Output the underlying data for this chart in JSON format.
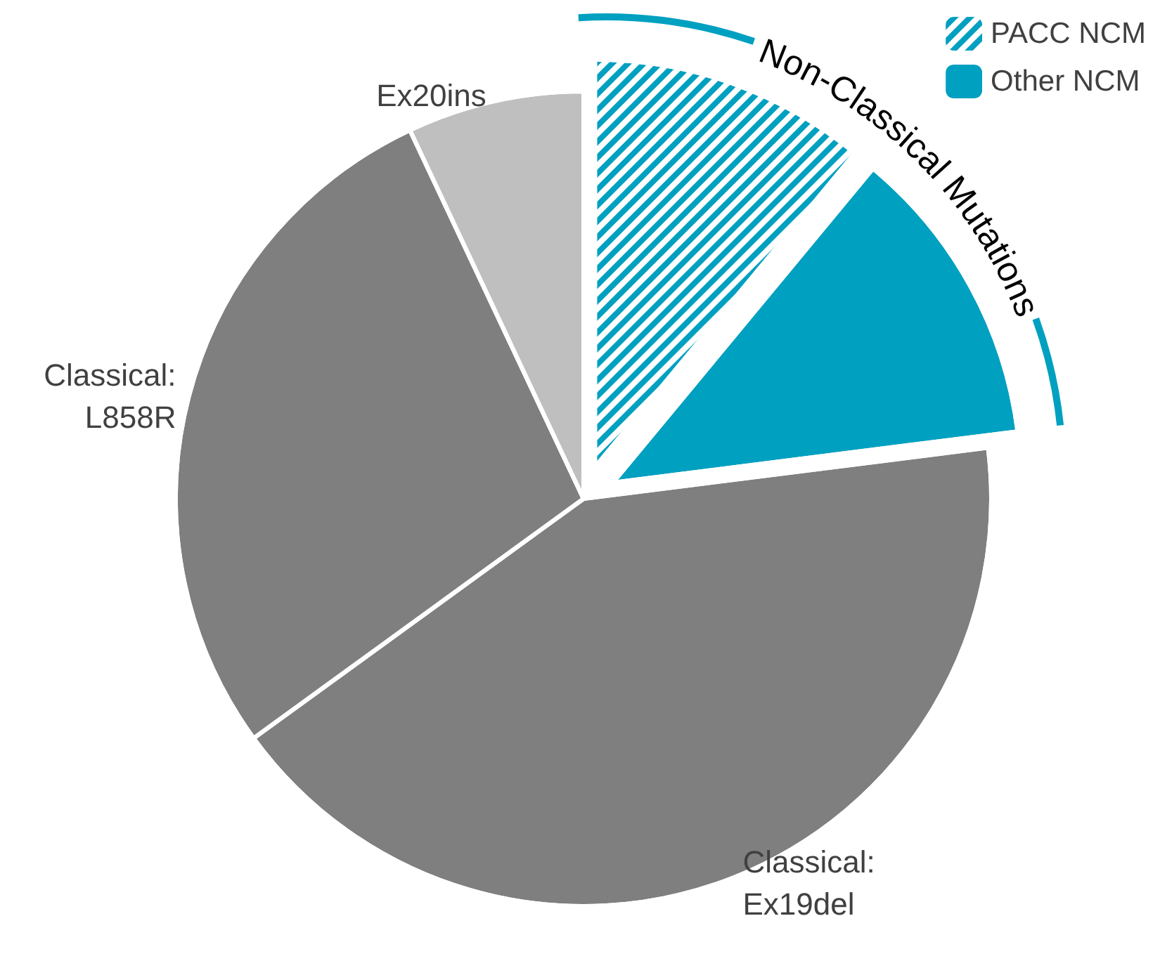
{
  "chart_data": {
    "type": "pie",
    "categories": [
      "PACC NCM",
      "Other NCM",
      "Classical:\nEx19del",
      "Classical:\nL858R",
      "Ex20ins"
    ],
    "values": [
      11,
      12,
      42,
      28,
      7
    ],
    "colors": [
      "#00a0c0",
      "#00a0c0",
      "#7f7f7f",
      "#7f7f7f",
      "#bfbfbf"
    ],
    "legend": "top right",
    "annotations": [
      "Non-Classical Mutations"
    ]
  }
}
